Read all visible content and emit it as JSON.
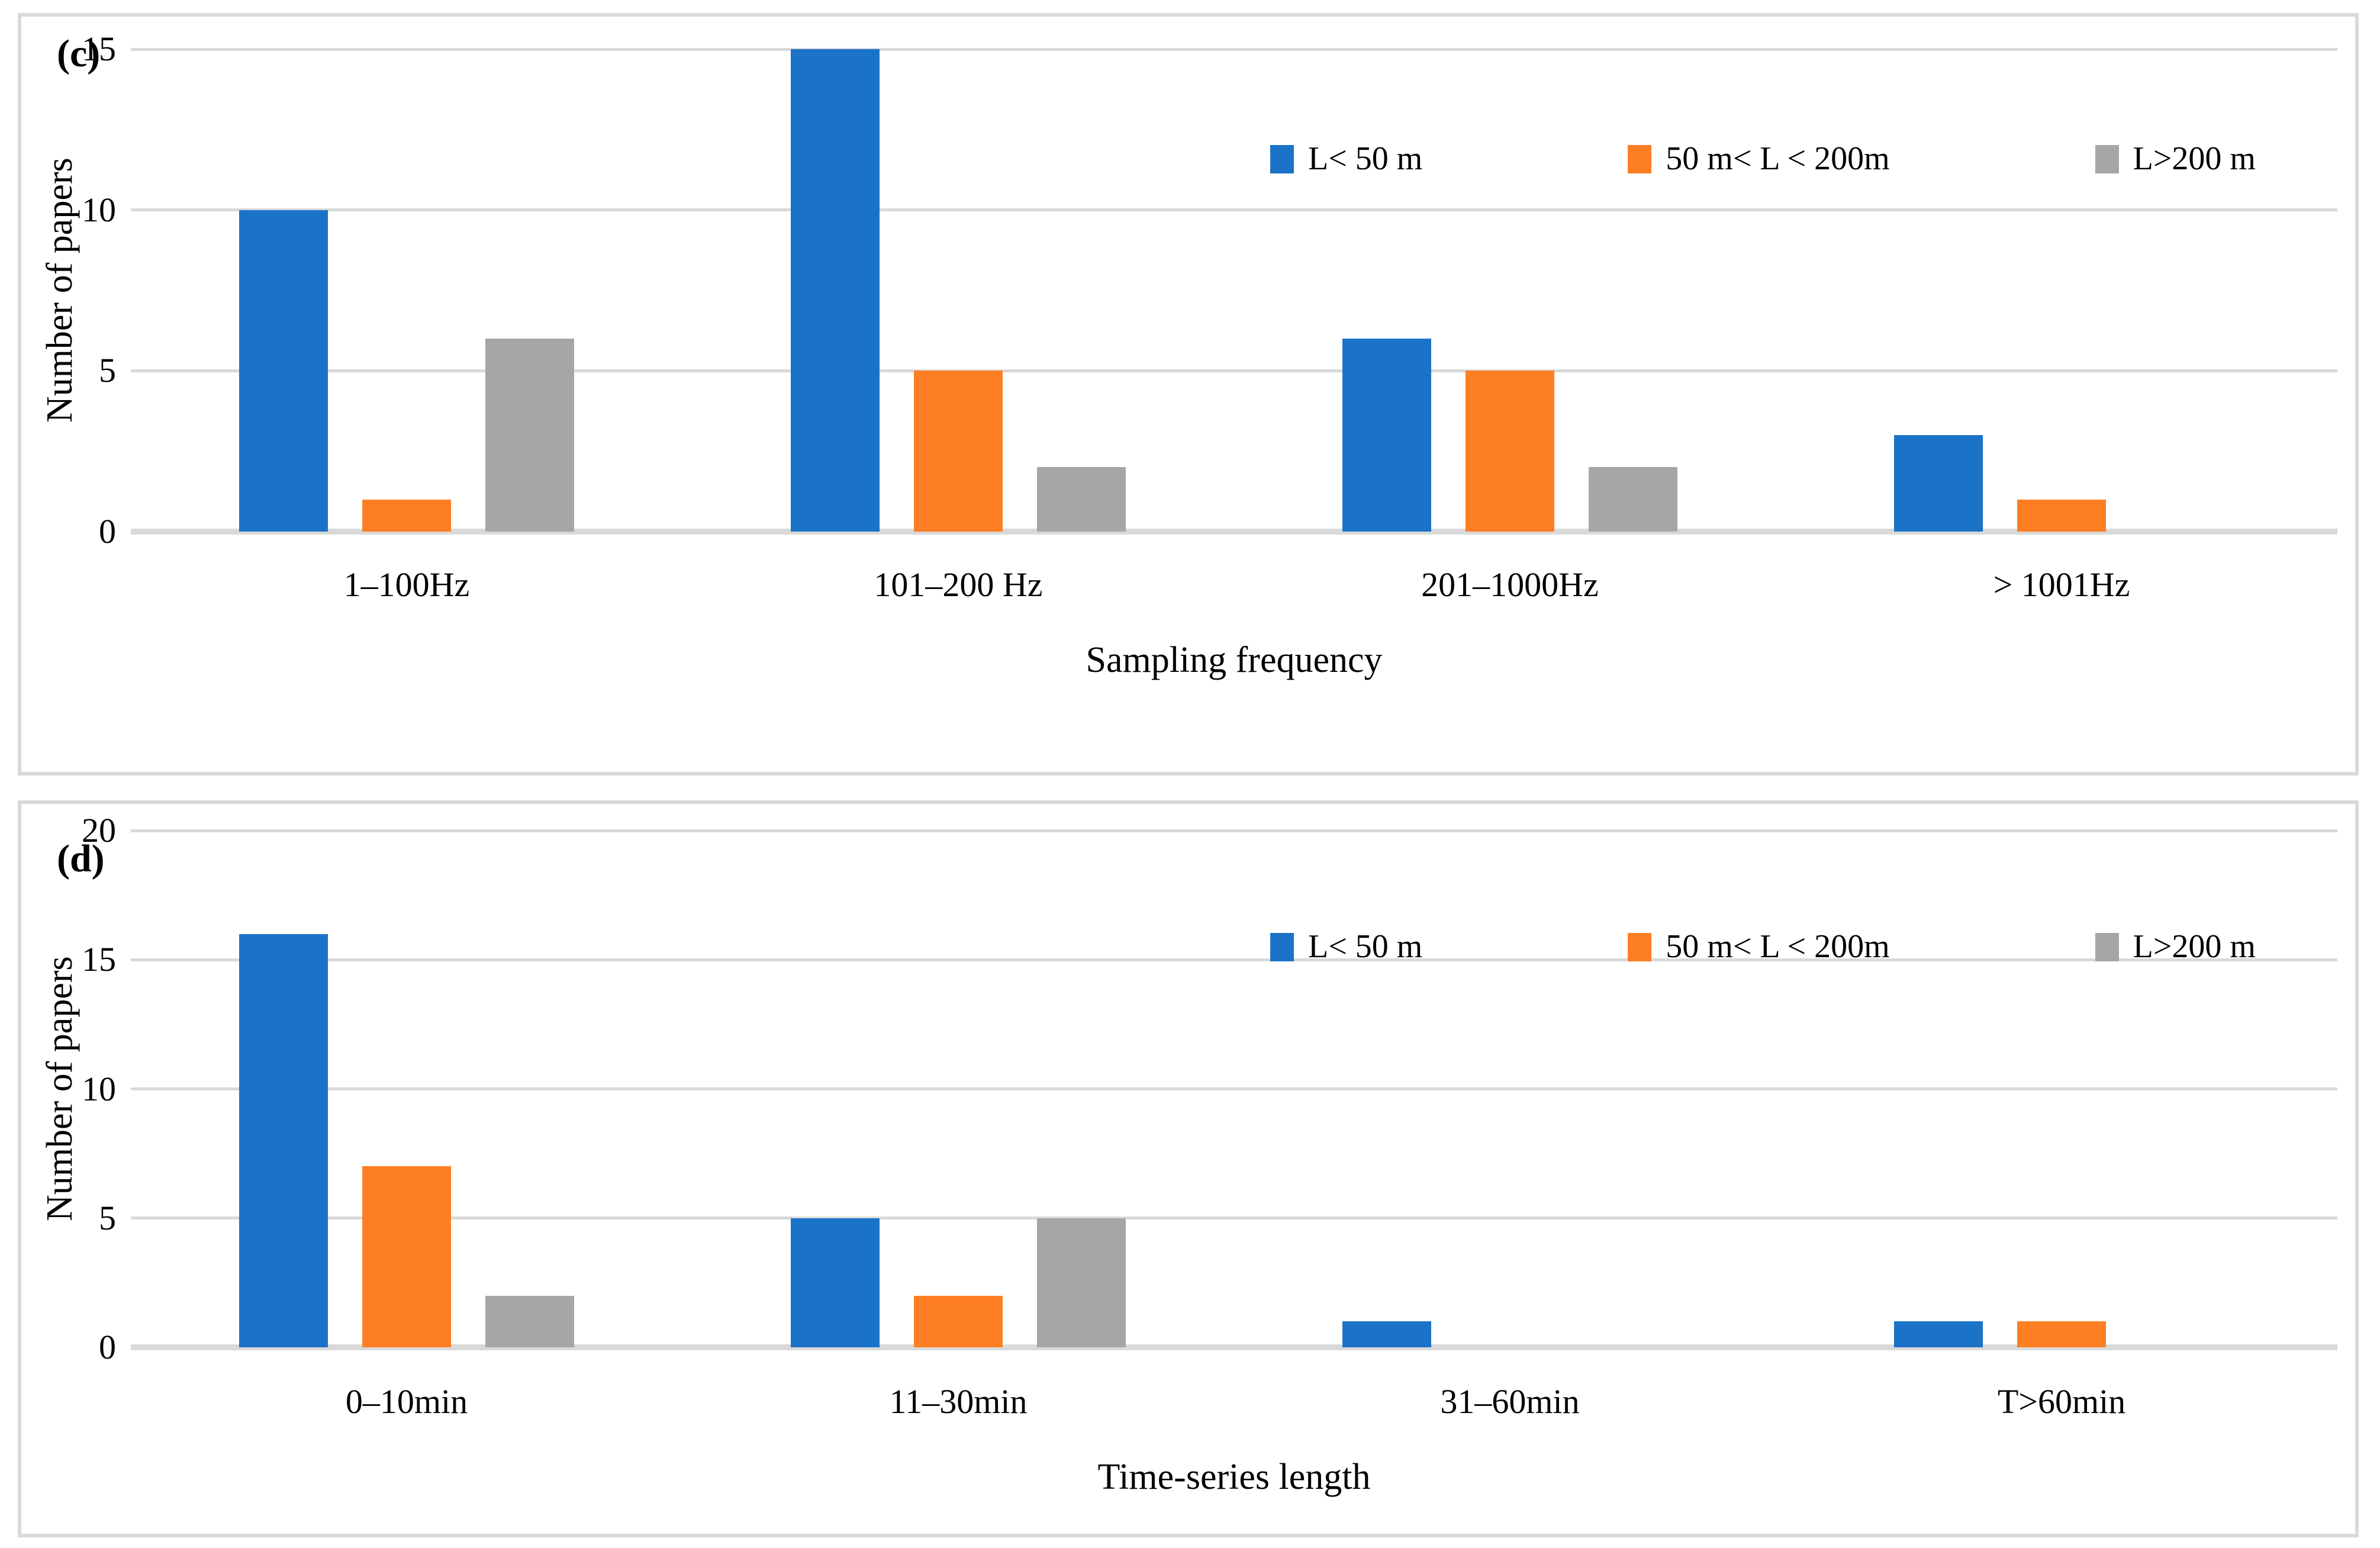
{
  "chart_data": [
    {
      "type": "bar",
      "panel_label": "(c)",
      "title": "",
      "xlabel": "Sampling frequency",
      "ylabel": "Number of papers",
      "categories": [
        "1–100Hz",
        "101–200 Hz",
        "201–1000Hz",
        "> 1001Hz"
      ],
      "series": [
        {
          "name": "L< 50 m",
          "color": "#1B73C8",
          "values": [
            10,
            15,
            6,
            3
          ]
        },
        {
          "name": "50 m< L < 200m",
          "color": "#FD7E23",
          "values": [
            1,
            5,
            5,
            1
          ]
        },
        {
          "name": "L>200 m",
          "color": "#A6A6A6",
          "values": [
            6,
            2,
            2,
            0
          ]
        }
      ],
      "ylim": [
        0,
        15
      ],
      "yticks": [
        0,
        5,
        10,
        15
      ],
      "grid": true,
      "legend_position": "inside-top-right"
    },
    {
      "type": "bar",
      "panel_label": "(d)",
      "title": "",
      "xlabel": "Time-series length",
      "ylabel": "Number of papers",
      "categories": [
        "0–10min",
        "11–30min",
        "31–60min",
        "T>60min"
      ],
      "series": [
        {
          "name": "L< 50 m",
          "color": "#1B73C8",
          "values": [
            16,
            5,
            1,
            1
          ]
        },
        {
          "name": "50 m< L < 200m",
          "color": "#FD7E23",
          "values": [
            7,
            2,
            0,
            1
          ]
        },
        {
          "name": "L>200 m",
          "color": "#A6A6A6",
          "values": [
            2,
            5,
            0,
            0
          ]
        }
      ],
      "ylim": [
        0,
        20
      ],
      "yticks": [
        0,
        5,
        10,
        15,
        20
      ],
      "grid": true,
      "legend_position": "inside-top-right"
    }
  ],
  "style_colors": {
    "gridline": "#D9D9D9",
    "panel_border": "#D9D9D9",
    "blue": "#1B73C8",
    "orange": "#FD7E23",
    "gray": "#A6A6A6"
  }
}
